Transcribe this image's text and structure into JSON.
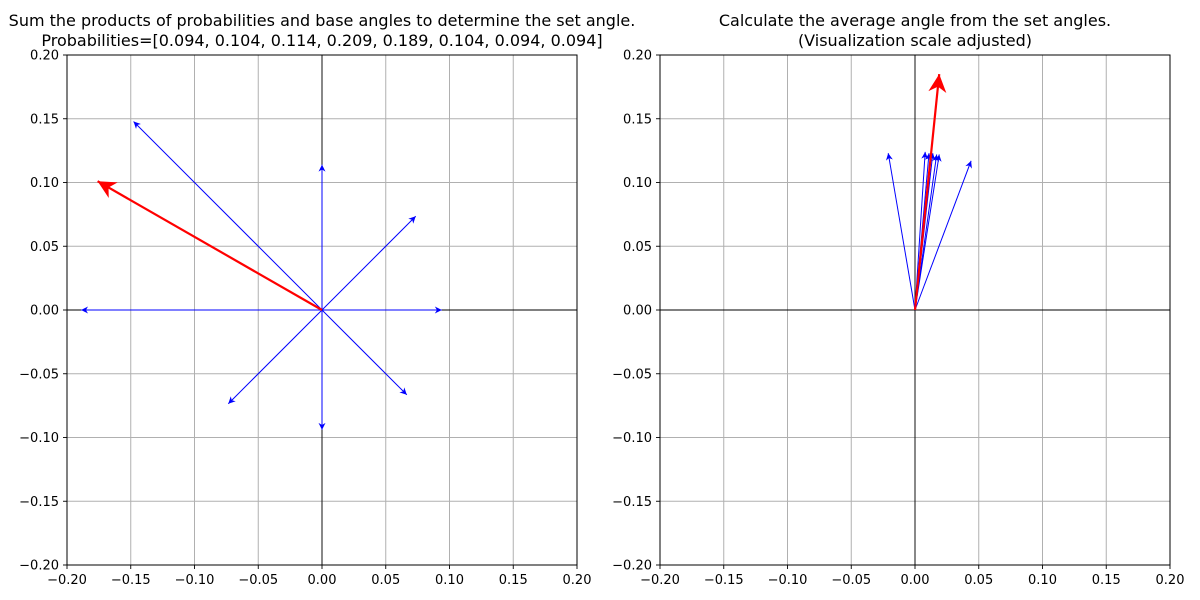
{
  "chart_data": [
    {
      "type": "quiver",
      "title_lines": [
        "Sum the products of probabilities and base angles to determine the set angle.",
        "Probabilities=[0.094, 0.104, 0.114, 0.209, 0.189, 0.104, 0.094, 0.094]"
      ],
      "xlim": [
        -0.2,
        0.2
      ],
      "ylim": [
        -0.2,
        0.2
      ],
      "xticks": [
        -0.2,
        -0.15,
        -0.1,
        -0.05,
        0.0,
        0.05,
        0.1,
        0.15,
        0.2
      ],
      "yticks": [
        -0.2,
        -0.15,
        -0.1,
        -0.05,
        0.0,
        0.05,
        0.1,
        0.15,
        0.2
      ],
      "xtick_labels": [
        "−0.20",
        "−0.15",
        "−0.10",
        "−0.05",
        "0.00",
        "0.05",
        "0.10",
        "0.15",
        "0.20"
      ],
      "ytick_labels": [
        "−0.20",
        "−0.15",
        "−0.10",
        "−0.05",
        "0.00",
        "0.05",
        "0.10",
        "0.15",
        "0.20"
      ],
      "grid": true,
      "series": [
        {
          "color": "#0000ff",
          "vectors": [
            {
              "x": 0.094,
              "y": 0.0
            },
            {
              "x": 0.0735,
              "y": 0.0735
            },
            {
              "x": 0.0,
              "y": 0.114
            },
            {
              "x": -0.1478,
              "y": 0.1478
            },
            {
              "x": -0.189,
              "y": 0.0
            },
            {
              "x": -0.0735,
              "y": -0.0735
            },
            {
              "x": 0.0,
              "y": -0.094
            },
            {
              "x": 0.0665,
              "y": -0.0665
            }
          ]
        },
        {
          "color": "#ff0000",
          "highlight": true,
          "vectors": [
            {
              "x": -0.176,
              "y": 0.101
            }
          ]
        }
      ]
    },
    {
      "type": "quiver",
      "title_lines": [
        "Calculate the average angle from the set angles.",
        "(Visualization scale adjusted)"
      ],
      "xlim": [
        -0.2,
        0.2
      ],
      "ylim": [
        -0.2,
        0.2
      ],
      "xticks": [
        -0.2,
        -0.15,
        -0.1,
        -0.05,
        0.0,
        0.05,
        0.1,
        0.15,
        0.2
      ],
      "yticks": [
        -0.2,
        -0.15,
        -0.1,
        -0.05,
        0.0,
        0.05,
        0.1,
        0.15,
        0.2
      ],
      "xtick_labels": [
        "−0.20",
        "−0.15",
        "−0.10",
        "−0.05",
        "0.00",
        "0.05",
        "0.10",
        "0.15",
        "0.20"
      ],
      "ytick_labels": [
        "−0.20",
        "−0.15",
        "−0.10",
        "−0.05",
        "0.00",
        "0.05",
        "0.10",
        "0.15",
        "0.20"
      ],
      "grid": true,
      "series": [
        {
          "color": "#0000ff",
          "vectors": [
            {
              "x": -0.021,
              "y": 0.123
            },
            {
              "x": 0.008,
              "y": 0.124
            },
            {
              "x": 0.011,
              "y": 0.123
            },
            {
              "x": 0.014,
              "y": 0.123
            },
            {
              "x": 0.017,
              "y": 0.122
            },
            {
              "x": 0.019,
              "y": 0.122
            },
            {
              "x": 0.044,
              "y": 0.117
            }
          ]
        },
        {
          "color": "#ff0000",
          "highlight": true,
          "vectors": [
            {
              "x": 0.019,
              "y": 0.185
            }
          ]
        }
      ]
    }
  ]
}
